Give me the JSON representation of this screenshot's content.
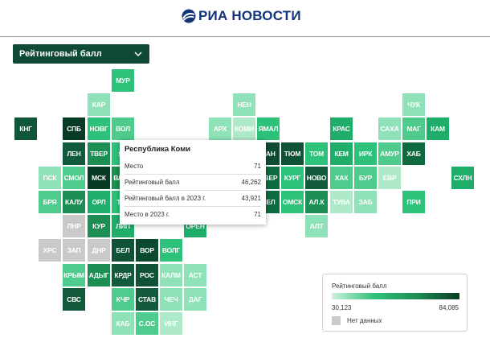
{
  "header": {
    "logo_text": "РИА НОВОСТИ",
    "logo_icon": "ria-logo-icon"
  },
  "dropdown": {
    "label": "Рейтинговый балл",
    "icon": "chevron-down-icon"
  },
  "tiles": [
    {
      "label": "МУР",
      "color": "#2ec17a"
    },
    {
      "label": "КАР",
      "color": "#8fe2b8"
    },
    {
      "label": "НЕН",
      "color": "#8fe2b8"
    },
    {
      "label": "ЧУК",
      "color": "#8fe2b8"
    },
    {
      "label": "КНГ",
      "color": "#10563a"
    },
    {
      "label": "СПБ",
      "color": "#083b26"
    },
    {
      "label": "НОВГ",
      "color": "#2ec17a"
    },
    {
      "label": "ВОЛ",
      "color": "#4fcc8d"
    },
    {
      "label": "АРХ",
      "color": "#8fe2b8"
    },
    {
      "label": "КОМИ",
      "color": "#aeeaca"
    },
    {
      "label": "ЯМАЛ",
      "color": "#2ec17a"
    },
    {
      "label": "КРАС",
      "color": "#1fae6a"
    },
    {
      "label": "САХА",
      "color": "#8fe2b8"
    },
    {
      "label": "МАГ",
      "color": "#4fcc8d"
    },
    {
      "label": "КАМ",
      "color": "#1fae6a"
    },
    {
      "label": "ЛЕН",
      "color": "#125a3c"
    },
    {
      "label": "ТВЕР",
      "color": "#1c8e53"
    },
    {
      "label": "ЯР",
      "color": "#2ec17a"
    },
    {
      "label": "ХАН",
      "color": "#0e4c33"
    },
    {
      "label": "ТЮМ",
      "color": "#0f5236"
    },
    {
      "label": "ТОМ",
      "color": "#2ec17a"
    },
    {
      "label": "КЕМ",
      "color": "#1fae6a"
    },
    {
      "label": "ИРК",
      "color": "#2ec17a"
    },
    {
      "label": "АМУР",
      "color": "#4fcc8d"
    },
    {
      "label": "ХАБ",
      "color": "#0f6a40"
    },
    {
      "label": "ПСК",
      "color": "#8fe2b8"
    },
    {
      "label": "СМОЛ",
      "color": "#4fcc8d"
    },
    {
      "label": "МСК",
      "color": "#083b26"
    },
    {
      "label": "ВЛАД",
      "color": "#1c8e53"
    },
    {
      "label": "СВЕР",
      "color": "#0f6a40"
    },
    {
      "label": "КУРГ",
      "color": "#2ec17a"
    },
    {
      "label": "НОВО",
      "color": "#125a3c"
    },
    {
      "label": "ХАК",
      "color": "#4fcc8d"
    },
    {
      "label": "БУР",
      "color": "#4fcc8d"
    },
    {
      "label": "ЕВР",
      "color": "#aeeaca"
    },
    {
      "label": "СХЛН",
      "color": "#1fae6a"
    },
    {
      "label": "БРЯ",
      "color": "#4fcc8d"
    },
    {
      "label": "КАЛУ",
      "color": "#1c8e53"
    },
    {
      "label": "ОРЛ",
      "color": "#1fae6a"
    },
    {
      "label": "ТУЛ",
      "color": "#2ec17a"
    },
    {
      "label": "ЧЕЛ",
      "color": "#0f6a40"
    },
    {
      "label": "ОМСК",
      "color": "#2ec17a"
    },
    {
      "label": "АЛ.К",
      "color": "#1c8e53"
    },
    {
      "label": "ТУВА",
      "color": "#aeeaca"
    },
    {
      "label": "ЗАБ",
      "color": "#8fe2b8"
    },
    {
      "label": "ПРИ",
      "color": "#2ec17a"
    },
    {
      "label": "ЛНР",
      "color": "#c9c9c9"
    },
    {
      "label": "КУР",
      "color": "#1c8e53"
    },
    {
      "label": "ЛИП",
      "color": "#1fae6a"
    },
    {
      "label": "ОРЕН",
      "color": "#1fae6a"
    },
    {
      "label": "АЛТ",
      "color": "#8fe2b8"
    },
    {
      "label": "ХРС",
      "color": "#c9c9c9"
    },
    {
      "label": "ЗАП",
      "color": "#c9c9c9"
    },
    {
      "label": "ДНР",
      "color": "#c9c9c9"
    },
    {
      "label": "БЕЛ",
      "color": "#0f5236"
    },
    {
      "label": "ВОР",
      "color": "#0a4a2e"
    },
    {
      "label": "ВОЛГ",
      "color": "#2ec17a"
    },
    {
      "label": "КРЫМ",
      "color": "#4fcc8d"
    },
    {
      "label": "АДЫГ",
      "color": "#1c8e53"
    },
    {
      "label": "КРДР",
      "color": "#125a3c"
    },
    {
      "label": "РОС",
      "color": "#0f5236"
    },
    {
      "label": "КАЛМ",
      "color": "#8fe2b8"
    },
    {
      "label": "АСТ",
      "color": "#8fe2b8"
    },
    {
      "label": "СВС",
      "color": "#125a3c"
    },
    {
      "label": "КЧР",
      "color": "#4fcc8d"
    },
    {
      "label": "СТАВ",
      "color": "#125a3c"
    },
    {
      "label": "ЧЕЧ",
      "color": "#8fe2b8"
    },
    {
      "label": "ДАГ",
      "color": "#8fe2b8"
    },
    {
      "label": "КАБ",
      "color": "#8fe2b8"
    },
    {
      "label": "С.ОС",
      "color": "#4fcc8d"
    },
    {
      "label": "ИНГ",
      "color": "#aeeaca"
    }
  ],
  "tooltip": {
    "title": "Республика Коми",
    "rows": [
      {
        "label": "Место",
        "value": "71"
      },
      {
        "label": "Рейтинговый балл",
        "value": "46,262"
      },
      {
        "label": "Рейтинговый балл в 2023 г.",
        "value": "43,921"
      },
      {
        "label": "Место в 2023 г.",
        "value": "71"
      }
    ]
  },
  "legend": {
    "title": "Рейтинговый балл",
    "min": "30,123",
    "max": "84,085",
    "nodata_label": "Нет данных",
    "nodata_color": "#c9c9c9"
  }
}
